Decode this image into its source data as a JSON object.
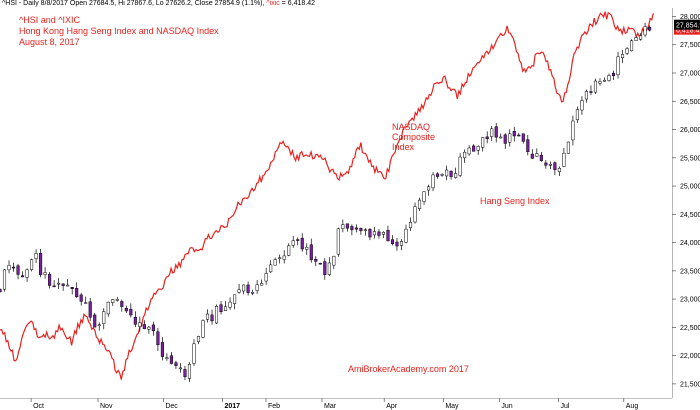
{
  "header": {
    "text": "^HSI - Daily 8/8/2017 Open 27684.5, Hi 27867.6, Lo 27626.2, Close 27854.9 (1.1%)",
    "ixic_label": "^ixic",
    "ixic_value": "= 6,418.42"
  },
  "annotations": {
    "title_line1": "^HSI and ^IXIC",
    "title_line2": "Hong Kong Hang Seng Index and NASDAQ Index",
    "title_line3": "August 8, 2017",
    "nasdaq_line1": "NASDAQ",
    "nasdaq_line2": "Composite",
    "nasdaq_line3": "Index",
    "hsi_label": "Hang Seng Index",
    "watermark": "AmiBrokerAcademy.com  2017"
  },
  "badges": {
    "hsi_last": "27,854.9",
    "ixic_last": "6,418.4"
  },
  "colors": {
    "ixic_line": "#e8221e",
    "up_body": "#ffffff",
    "down_body": "#7b1fa2",
    "candle_outline": "#000000",
    "badge_bg": "#000000",
    "ixic_badge_bg": "#e8221e"
  },
  "chart_data": {
    "type": "candlestick",
    "y_ticks": [
      21500,
      22000,
      22500,
      23000,
      23500,
      24000,
      24500,
      25000,
      25500,
      26000,
      26500,
      27000,
      27500,
      28000
    ],
    "y_tick_labels": [
      "21,500",
      "22,000",
      "22,500",
      "23,000",
      "23,500",
      "24,000",
      "24,500",
      "25,000",
      "25,500",
      "26,000",
      "26,500",
      "27,000",
      "27,500",
      "28,000"
    ],
    "ylim": [
      21250,
      28150
    ],
    "x_tick_labels": [
      "Oct",
      "Nov",
      "Dec",
      "2017",
      "Feb",
      "Mar",
      "Apr",
      "May",
      "Jun",
      "Jul",
      "Aug"
    ],
    "x_tick_positions": [
      20,
      63,
      105,
      143,
      171,
      207,
      247,
      285,
      321,
      359,
      401
    ],
    "bold_x_tick": "2017",
    "x_range": [
      0,
      432
    ],
    "hsi_close_anchors": [
      [
        0,
        23200
      ],
      [
        6,
        23700
      ],
      [
        14,
        23350
      ],
      [
        22,
        23800
      ],
      [
        26,
        23500
      ],
      [
        32,
        23300
      ],
      [
        40,
        23350
      ],
      [
        48,
        23100
      ],
      [
        56,
        22900
      ],
      [
        60,
        22600
      ],
      [
        66,
        22650
      ],
      [
        70,
        22950
      ],
      [
        76,
        22900
      ],
      [
        82,
        22700
      ],
      [
        88,
        22500
      ],
      [
        94,
        22600
      ],
      [
        100,
        22300
      ],
      [
        106,
        21900
      ],
      [
        112,
        21850
      ],
      [
        118,
        21600
      ],
      [
        122,
        21900
      ],
      [
        126,
        22300
      ],
      [
        132,
        22600
      ],
      [
        140,
        22800
      ],
      [
        146,
        22900
      ],
      [
        152,
        23100
      ],
      [
        158,
        23200
      ],
      [
        162,
        23000
      ],
      [
        168,
        23350
      ],
      [
        176,
        23650
      ],
      [
        184,
        23900
      ],
      [
        190,
        24100
      ],
      [
        196,
        23900
      ],
      [
        202,
        23600
      ],
      [
        208,
        23500
      ],
      [
        214,
        23700
      ],
      [
        218,
        24200
      ],
      [
        224,
        24300
      ],
      [
        230,
        24350
      ],
      [
        236,
        24250
      ],
      [
        240,
        24100
      ],
      [
        246,
        24150
      ],
      [
        250,
        24050
      ],
      [
        256,
        23900
      ],
      [
        262,
        24300
      ],
      [
        268,
        24700
      ],
      [
        274,
        24950
      ],
      [
        280,
        25150
      ],
      [
        286,
        25200
      ],
      [
        292,
        25300
      ],
      [
        298,
        25500
      ],
      [
        304,
        25700
      ],
      [
        310,
        25850
      ],
      [
        316,
        25950
      ],
      [
        320,
        25750
      ],
      [
        326,
        25800
      ],
      [
        332,
        25900
      ],
      [
        338,
        25700
      ],
      [
        342,
        25500
      ],
      [
        346,
        25600
      ],
      [
        350,
        25500
      ],
      [
        356,
        25300
      ],
      [
        360,
        25350
      ],
      [
        364,
        25700
      ],
      [
        368,
        26200
      ],
      [
        372,
        26400
      ],
      [
        378,
        26600
      ],
      [
        384,
        26800
      ],
      [
        388,
        26850
      ],
      [
        394,
        27000
      ],
      [
        398,
        27250
      ],
      [
        402,
        27450
      ],
      [
        406,
        27650
      ],
      [
        412,
        27700
      ],
      [
        416,
        27750
      ],
      [
        420,
        27855
      ]
    ],
    "ixic_close_anchors": [
      [
        0,
        22500
      ],
      [
        6,
        22200
      ],
      [
        10,
        21900
      ],
      [
        14,
        22250
      ],
      [
        18,
        22600
      ],
      [
        22,
        22500
      ],
      [
        26,
        22300
      ],
      [
        30,
        22400
      ],
      [
        34,
        22300
      ],
      [
        38,
        22550
      ],
      [
        42,
        22350
      ],
      [
        46,
        22250
      ],
      [
        50,
        22500
      ],
      [
        54,
        22700
      ],
      [
        58,
        22550
      ],
      [
        62,
        22350
      ],
      [
        66,
        22200
      ],
      [
        70,
        22100
      ],
      [
        74,
        21800
      ],
      [
        78,
        21600
      ],
      [
        82,
        21950
      ],
      [
        86,
        22250
      ],
      [
        90,
        22500
      ],
      [
        94,
        22800
      ],
      [
        98,
        23000
      ],
      [
        104,
        23200
      ],
      [
        110,
        23500
      ],
      [
        116,
        23600
      ],
      [
        122,
        23900
      ],
      [
        128,
        23800
      ],
      [
        134,
        24100
      ],
      [
        140,
        24200
      ],
      [
        146,
        24300
      ],
      [
        152,
        24650
      ],
      [
        158,
        24800
      ],
      [
        164,
        25000
      ],
      [
        170,
        25200
      ],
      [
        176,
        25500
      ],
      [
        182,
        25800
      ],
      [
        186,
        25650
      ],
      [
        190,
        25500
      ],
      [
        196,
        25600
      ],
      [
        202,
        25500
      ],
      [
        208,
        25500
      ],
      [
        212,
        25300
      ],
      [
        216,
        25200
      ],
      [
        220,
        25150
      ],
      [
        224,
        25250
      ],
      [
        228,
        25550
      ],
      [
        232,
        25700
      ],
      [
        236,
        25500
      ],
      [
        240,
        25300
      ],
      [
        244,
        25250
      ],
      [
        248,
        25150
      ],
      [
        252,
        25500
      ],
      [
        256,
        25800
      ],
      [
        262,
        26100
      ],
      [
        268,
        26300
      ],
      [
        274,
        26500
      ],
      [
        280,
        26800
      ],
      [
        286,
        26900
      ],
      [
        290,
        26700
      ],
      [
        294,
        26600
      ],
      [
        298,
        26800
      ],
      [
        302,
        27000
      ],
      [
        308,
        27200
      ],
      [
        314,
        27400
      ],
      [
        320,
        27600
      ],
      [
        326,
        27800
      ],
      [
        330,
        27600
      ],
      [
        334,
        27200
      ],
      [
        338,
        27000
      ],
      [
        342,
        27100
      ],
      [
        346,
        27400
      ],
      [
        350,
        27300
      ],
      [
        354,
        27000
      ],
      [
        358,
        26700
      ],
      [
        362,
        26500
      ],
      [
        366,
        26900
      ],
      [
        370,
        27400
      ],
      [
        376,
        27700
      ],
      [
        382,
        27900
      ],
      [
        388,
        28050
      ],
      [
        394,
        27950
      ],
      [
        398,
        27700
      ],
      [
        402,
        27750
      ],
      [
        406,
        27800
      ],
      [
        410,
        27650
      ],
      [
        414,
        27750
      ],
      [
        418,
        27900
      ],
      [
        420,
        28050
      ]
    ]
  }
}
